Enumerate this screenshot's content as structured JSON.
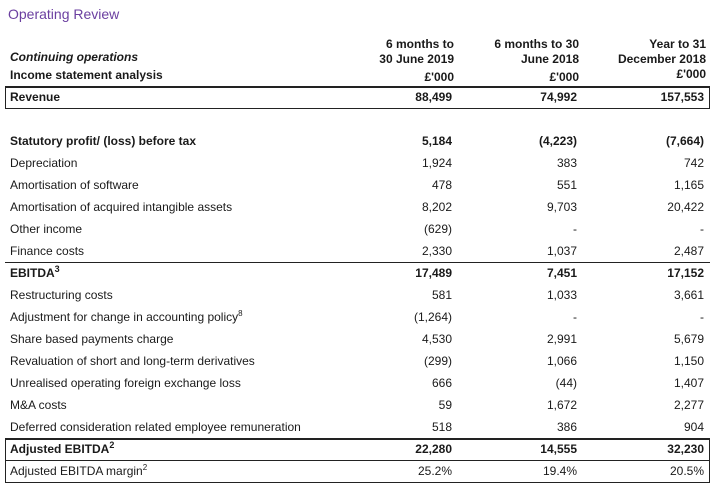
{
  "title": "Operating Review",
  "header": {
    "left_line1": "Continuing operations",
    "left_line2": "Income statement analysis",
    "col1_line1": "6 months to",
    "col1_line2": "30 June 2019",
    "col1_line3": "£'000",
    "col2_line1": "6 months to 30",
    "col2_line2": "June 2018",
    "col2_line3": "£'000",
    "col3_line1": "Year to 31",
    "col3_line2": "December 2018",
    "col3_line3": "£'000"
  },
  "rows": [
    {
      "label": "Revenue",
      "sup": "",
      "v1": "88,499",
      "v2": "74,992",
      "v3": "157,553",
      "bold": true
    },
    {
      "label": "Statutory profit/ (loss) before tax",
      "sup": "",
      "v1": "5,184",
      "v2": "(4,223)",
      "v3": "(7,664)",
      "bold": true
    },
    {
      "label": "Depreciation",
      "sup": "",
      "v1": "1,924",
      "v2": "383",
      "v3": "742",
      "bold": false
    },
    {
      "label": "Amortisation of software",
      "sup": "",
      "v1": "478",
      "v2": "551",
      "v3": "1,165",
      "bold": false
    },
    {
      "label": "Amortisation of acquired intangible assets",
      "sup": "",
      "v1": "8,202",
      "v2": "9,703",
      "v3": "20,422",
      "bold": false
    },
    {
      "label": "Other income",
      "sup": "",
      "v1": "(629)",
      "v2": "-",
      "v3": "-",
      "bold": false
    },
    {
      "label": "Finance costs",
      "sup": "",
      "v1": "2,330",
      "v2": "1,037",
      "v3": "2,487",
      "bold": false
    },
    {
      "label": "EBITDA",
      "sup": "3",
      "v1": "17,489",
      "v2": "7,451",
      "v3": "17,152",
      "bold": true
    },
    {
      "label": "Restructuring costs",
      "sup": "",
      "v1": "581",
      "v2": "1,033",
      "v3": "3,661",
      "bold": false
    },
    {
      "label": "Adjustment for change in accounting policy",
      "sup": "8",
      "v1": "(1,264)",
      "v2": "-",
      "v3": "-",
      "bold": false
    },
    {
      "label": "Share based payments charge",
      "sup": "",
      "v1": "4,530",
      "v2": "2,991",
      "v3": "5,679",
      "bold": false
    },
    {
      "label": "Revaluation of short and long-term derivatives",
      "sup": "",
      "v1": "(299)",
      "v2": "1,066",
      "v3": "1,150",
      "bold": false
    },
    {
      "label": "Unrealised operating foreign exchange loss",
      "sup": "",
      "v1": "666",
      "v2": "(44)",
      "v3": "1,407",
      "bold": false
    },
    {
      "label": "M&A costs",
      "sup": "",
      "v1": "59",
      "v2": "1,672",
      "v3": "2,277",
      "bold": false
    },
    {
      "label": "Deferred consideration related employee remuneration",
      "sup": "",
      "v1": "518",
      "v2": "386",
      "v3": "904",
      "bold": false
    },
    {
      "label": "Adjusted EBITDA",
      "sup": "2",
      "v1": "22,280",
      "v2": "14,555",
      "v3": "32,230",
      "bold": true
    },
    {
      "label": "Adjusted EBITDA margin",
      "sup": "2",
      "v1": "25.2%",
      "v2": "19.4%",
      "v3": "20.5%",
      "bold": false
    }
  ]
}
